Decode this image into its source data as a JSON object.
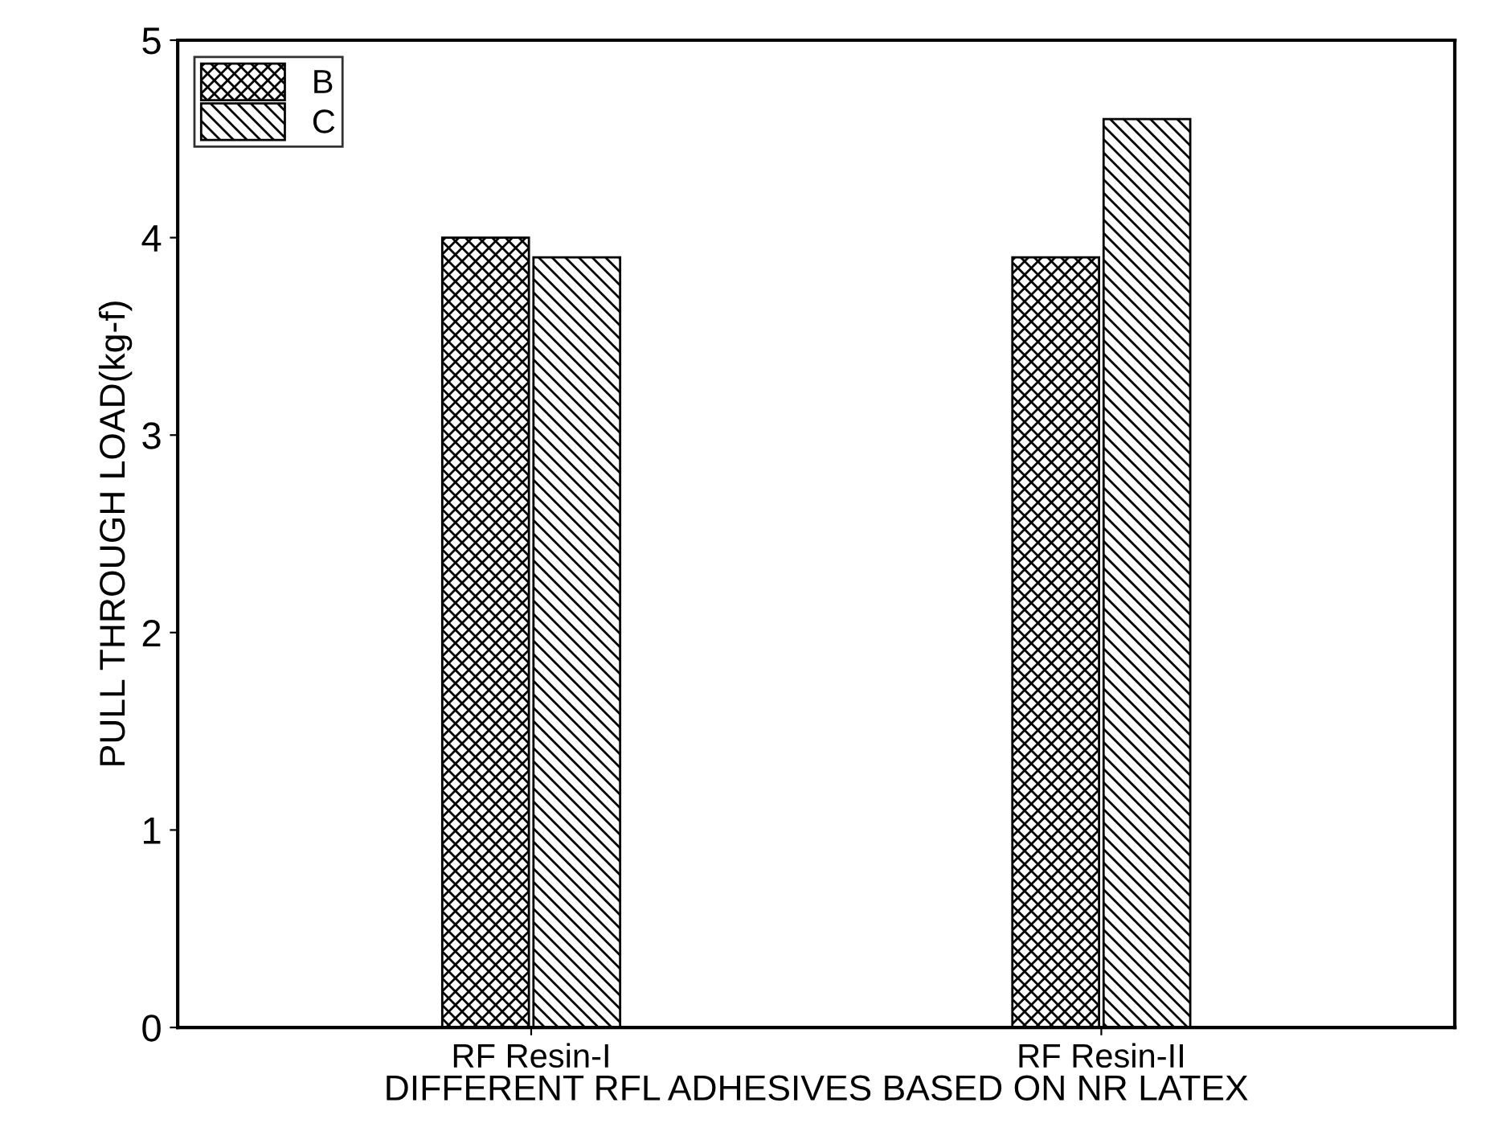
{
  "chart_data": {
    "type": "bar",
    "xlabel": "DIFFERENT RFL ADHESIVES BASED ON NR LATEX",
    "ylabel": "PULL THROUGH LOAD(kg-f)",
    "categories": [
      "RF Resin-I",
      "RF Resin-II"
    ],
    "series": [
      {
        "name": "B",
        "color": "#000000",
        "values": [
          4.0,
          3.9
        ]
      },
      {
        "name": "C",
        "color": "#000000",
        "values": [
          3.9,
          4.6
        ]
      }
    ],
    "ylim": [
      0,
      5
    ],
    "yticks": [
      0,
      1,
      2,
      3,
      4,
      5
    ],
    "grid": false,
    "legend": "top left"
  }
}
